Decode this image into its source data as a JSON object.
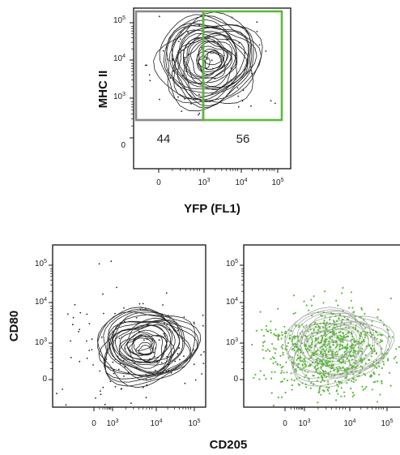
{
  "chart_data": [
    {
      "type": "scatter",
      "subtype": "flow-cytometry-contour",
      "xlabel": "YFP (FL1)",
      "ylabel": "MHC II",
      "x_scale": "biexponential",
      "y_scale": "biexponential",
      "x_ticks": [
        "0",
        "10^3",
        "10^4",
        "10^5"
      ],
      "y_ticks": [
        "0",
        "10^3",
        "10^4",
        "10^5"
      ],
      "x_tick_values": [
        0,
        1000,
        10000,
        100000
      ],
      "y_tick_values": [
        0,
        1000,
        10000,
        100000
      ],
      "population_center": {
        "x": 1500,
        "y": 9000
      },
      "gates": [
        {
          "label": "44",
          "color": "#888888",
          "x_range": [
            -900,
            1000
          ],
          "y_range": [
            400,
            140000
          ]
        },
        {
          "label": "56",
          "color": "#5cb83c",
          "x_range": [
            1000,
            120000
          ],
          "y_range": [
            400,
            140000
          ]
        }
      ]
    },
    {
      "type": "scatter",
      "subtype": "flow-cytometry-contour",
      "xlabel": "CD205",
      "ylabel": "CD80",
      "x_scale": "biexponential",
      "y_scale": "biexponential",
      "x_ticks": [
        "0",
        "10^3",
        "10^4",
        "10^5"
      ],
      "y_ticks": [
        "0",
        "10^3",
        "10^4",
        "10^5"
      ],
      "x_tick_values": [
        0,
        1000,
        10000,
        100000
      ],
      "y_tick_values": [
        0,
        1000,
        10000,
        100000
      ],
      "population_center": {
        "x": 4000,
        "y": 900
      },
      "contour_color": "#333333"
    },
    {
      "type": "scatter",
      "subtype": "flow-cytometry-contour-overlay",
      "xlabel": "CD205",
      "ylabel": "CD80",
      "x_scale": "biexponential",
      "y_scale": "biexponential",
      "x_ticks": [
        "0",
        "10^3",
        "10^4",
        "10^5"
      ],
      "y_ticks": [
        "0",
        "10^3",
        "10^4",
        "10^5"
      ],
      "x_tick_values": [
        0,
        1000,
        10000,
        100000
      ],
      "y_tick_values": [
        0,
        1000,
        10000,
        100000
      ],
      "population_center": {
        "x": 4000,
        "y": 900
      },
      "contour_color": "#aaaaaa",
      "overlay_color": "#5cb83c"
    }
  ],
  "labels": {
    "top_y": "MHC II",
    "top_x": "YFP (FL1)",
    "bottom_y": "CD80",
    "bottom_x": "CD205",
    "gate_left": "44",
    "gate_right": "56"
  },
  "colors": {
    "gate_left": "#888888",
    "gate_right": "#5cb83c",
    "overlay_dots": "#5cb83c"
  }
}
